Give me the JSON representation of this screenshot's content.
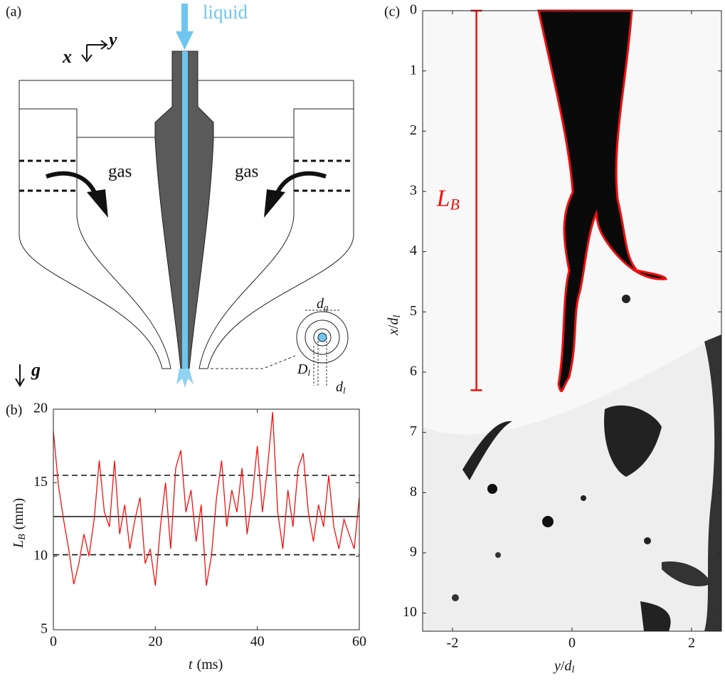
{
  "panel_labels": [
    "(a)",
    "(b)",
    "(c)"
  ],
  "diagram": {
    "liquid": "liquid",
    "axes": {
      "x": "x",
      "y": "y"
    },
    "gas_left": "gas",
    "gas_right": "gas",
    "d_g": {
      "main": "d",
      "sub": "g"
    },
    "D_l": {
      "main": "D",
      "sub": "l"
    },
    "d_l": {
      "main": "d",
      "sub": "l"
    },
    "gravity": "g"
  },
  "chart_data": [
    {
      "type": "line",
      "xlabel": {
        "main": "t",
        "unit": "(ms)"
      },
      "ylabel": {
        "main": "L",
        "sub": "B",
        "unit": "(mm)"
      },
      "x": [
        0,
        1,
        2,
        3,
        4,
        5,
        6,
        7,
        8,
        9,
        10,
        11,
        12,
        13,
        14,
        15,
        16,
        17,
        18,
        19,
        20,
        21,
        22,
        23,
        24,
        25,
        26,
        27,
        28,
        29,
        30,
        31,
        32,
        33,
        34,
        35,
        36,
        37,
        38,
        39,
        40,
        41,
        42,
        43,
        44,
        45,
        46,
        47,
        48,
        49,
        50,
        51,
        52,
        53,
        54,
        55,
        56,
        57,
        58,
        59,
        60
      ],
      "values": [
        18.5,
        14.8,
        12.5,
        10.5,
        8.1,
        9.5,
        11.5,
        10.0,
        12.5,
        16.5,
        13.0,
        12.0,
        16.5,
        11.5,
        13.5,
        10.5,
        12.5,
        14.0,
        9.5,
        10.5,
        8.0,
        12.0,
        15.0,
        10.5,
        16.0,
        17.2,
        13.0,
        14.5,
        11.0,
        13.5,
        8.0,
        10.0,
        14.0,
        16.5,
        12.0,
        14.5,
        13.0,
        16.0,
        11.5,
        14.0,
        17.5,
        13.0,
        16.0,
        19.8,
        13.0,
        10.5,
        14.5,
        12.0,
        16.0,
        17.0,
        13.0,
        11.0,
        13.5,
        12.0,
        15.5,
        12.0,
        10.5,
        12.5,
        11.5,
        10.5,
        14.0
      ],
      "color": "#ee1111",
      "hlines": [
        {
          "value": 12.7,
          "style": "solid"
        },
        {
          "value": 15.5,
          "style": "dashed"
        },
        {
          "value": 10.1,
          "style": "dashed"
        }
      ],
      "xlim": [
        0,
        60
      ],
      "xticks": [
        0,
        20,
        40,
        60
      ],
      "ylim": [
        5,
        20
      ],
      "yticks": [
        5,
        10,
        15,
        20
      ]
    },
    {
      "type": "image",
      "xlabel": {
        "main": "y",
        "sub": "l"
      },
      "ylabel": {
        "main": "x",
        "sub": "l"
      },
      "xlim": [
        -2.5,
        2.5
      ],
      "xticks": [
        -2,
        0,
        2
      ],
      "ylim": [
        0,
        10.3
      ],
      "yticks": [
        0,
        1,
        2,
        3,
        4,
        5,
        6,
        7,
        8,
        9,
        10
      ],
      "annotation": {
        "main": "L",
        "sub": "B",
        "x": -1.6,
        "range": [
          0,
          6.3
        ],
        "color": "#ee1111"
      }
    }
  ]
}
